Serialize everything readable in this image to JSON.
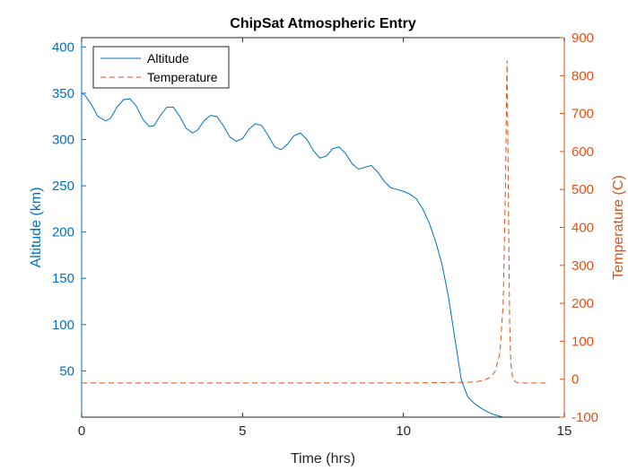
{
  "chart_data": {
    "type": "line",
    "title": "ChipSat Atmospheric Entry",
    "xlabel": "Time (hrs)",
    "ylabel_left": "Altitude (km)",
    "ylabel_right": "Temperature (C)",
    "xlim": [
      0,
      15
    ],
    "ylim_left": [
      0,
      410
    ],
    "ylim_right": [
      -100,
      900
    ],
    "x_ticks": [
      0,
      5,
      10,
      15
    ],
    "y_left_ticks": [
      50,
      100,
      150,
      200,
      250,
      300,
      350,
      400
    ],
    "y_right_ticks": [
      -100,
      0,
      100,
      200,
      300,
      400,
      500,
      600,
      700,
      800,
      900
    ],
    "grid": false,
    "legend_position": "top-left",
    "colors": {
      "altitude": "#0072BD",
      "temperature": "#D95319",
      "axes": "#262626"
    },
    "series": [
      {
        "name": "Altitude",
        "axis": "left",
        "style": "solid",
        "x": [
          0,
          0.1,
          0.3,
          0.5,
          0.75,
          0.9,
          1.1,
          1.3,
          1.5,
          1.7,
          1.9,
          2.1,
          2.25,
          2.45,
          2.65,
          2.85,
          3.05,
          3.25,
          3.45,
          3.6,
          3.8,
          4.0,
          4.2,
          4.4,
          4.6,
          4.8,
          5.0,
          5.2,
          5.4,
          5.6,
          5.8,
          6.0,
          6.2,
          6.4,
          6.6,
          6.8,
          7.0,
          7.2,
          7.4,
          7.6,
          7.8,
          8.0,
          8.2,
          8.4,
          8.6,
          8.8,
          9.0,
          9.2,
          9.4,
          9.6,
          9.8,
          10.0,
          10.2,
          10.4,
          10.6,
          10.8,
          11.0,
          11.2,
          11.4,
          11.6,
          11.8,
          12.0,
          12.2,
          12.4,
          12.6,
          12.8,
          13.0,
          13.1,
          13.2,
          13.3,
          13.4,
          13.5,
          13.7,
          13.9,
          14.1,
          14.2
        ],
        "y": [
          350,
          348,
          338,
          325,
          320,
          323,
          335,
          343,
          344,
          336,
          322,
          314,
          315,
          326,
          335,
          335,
          325,
          312,
          307,
          310,
          320,
          326,
          325,
          315,
          303,
          298,
          301,
          311,
          317,
          315,
          304,
          292,
          289,
          295,
          304,
          307,
          300,
          288,
          280,
          282,
          290,
          292,
          285,
          274,
          268,
          270,
          272,
          265,
          255,
          248,
          246,
          244,
          241,
          236,
          225,
          210,
          190,
          165,
          130,
          85,
          40,
          22,
          15,
          10,
          6,
          3,
          1,
          0,
          0,
          0,
          0,
          0,
          0,
          0,
          0,
          0
        ]
      },
      {
        "name": "Temperature",
        "axis": "right",
        "style": "dashed",
        "x": [
          0,
          1,
          2,
          3,
          4,
          5,
          6,
          7,
          8,
          9,
          10,
          11,
          12,
          12.3,
          12.5,
          12.7,
          12.85,
          13.0,
          13.1,
          13.17,
          13.22,
          13.26,
          13.3,
          13.34,
          13.4,
          13.5,
          13.7,
          14.0,
          14.5
        ],
        "y": [
          -10,
          -10,
          -10,
          -10,
          -10,
          -10,
          -10,
          -10,
          -10,
          -10,
          -10,
          -9,
          -8,
          -6,
          -3,
          5,
          20,
          70,
          200,
          500,
          840,
          500,
          150,
          40,
          0,
          -8,
          -10,
          -10,
          -10
        ]
      }
    ]
  }
}
